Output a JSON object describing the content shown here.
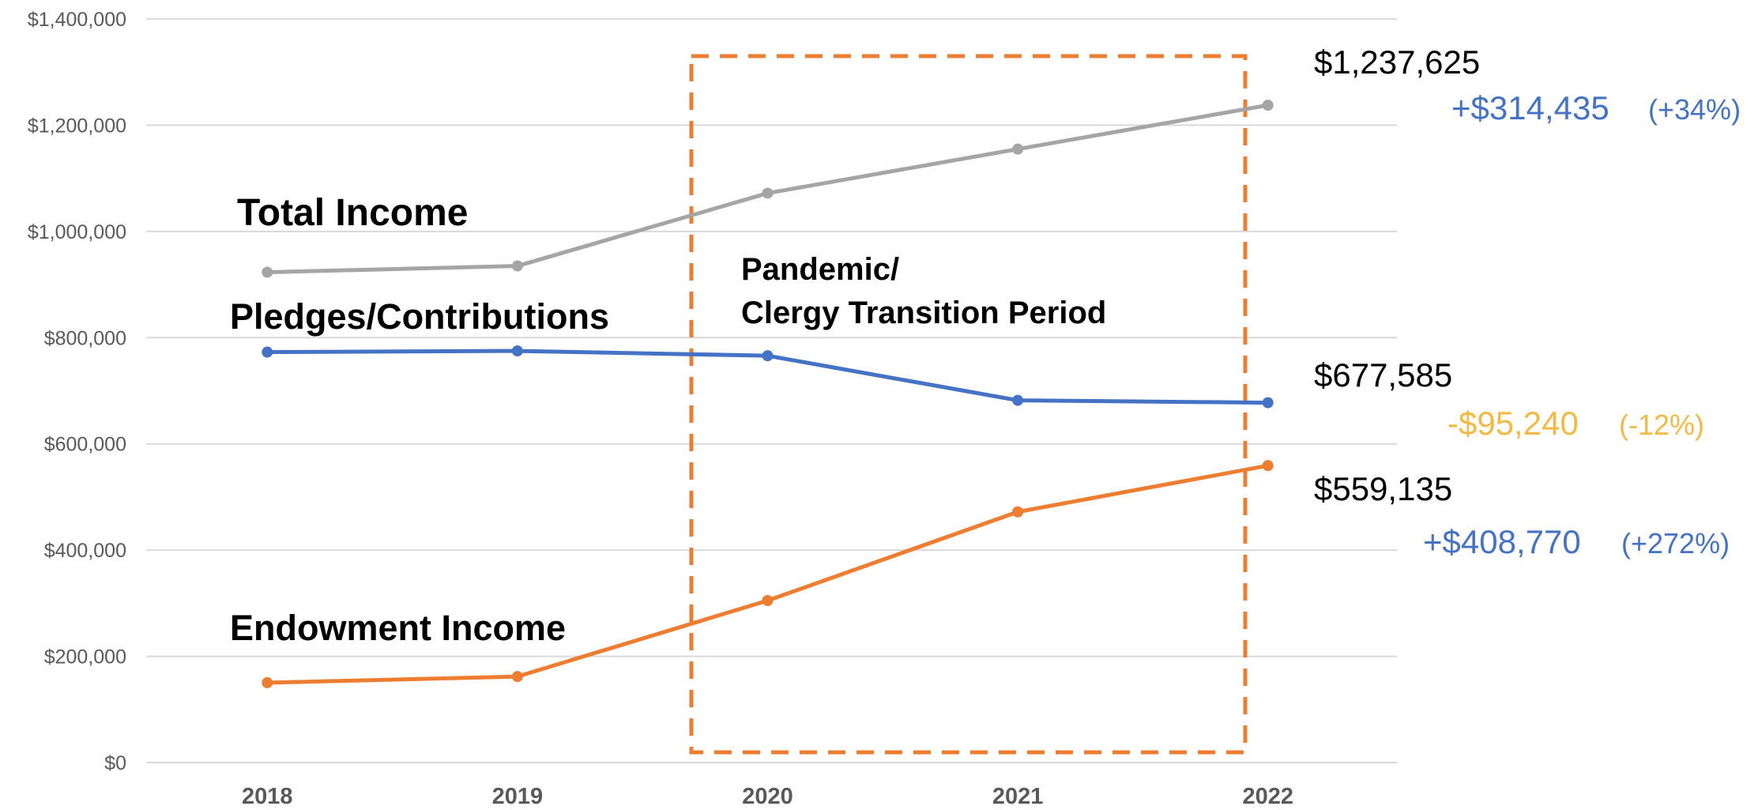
{
  "chart_data": {
    "type": "line",
    "categories": [
      "2018",
      "2019",
      "2020",
      "2021",
      "2022"
    ],
    "ylim": [
      0,
      1400000
    ],
    "yticks": [
      {
        "value": 0,
        "label": "$0"
      },
      {
        "value": 200000,
        "label": "$200,000"
      },
      {
        "value": 400000,
        "label": "$400,000"
      },
      {
        "value": 600000,
        "label": "$600,000"
      },
      {
        "value": 800000,
        "label": "$800,000"
      },
      {
        "value": 1000000,
        "label": "$1,000,000"
      },
      {
        "value": 1200000,
        "label": "$1,200,000"
      },
      {
        "value": 1400000,
        "label": "$1,400,000"
      }
    ],
    "grid": true,
    "series": [
      {
        "name": "Total Income",
        "color": "#a5a5a5",
        "values": [
          923190,
          935000,
          1072000,
          1155000,
          1237625
        ],
        "value_labels": [
          null,
          null,
          null,
          null,
          "$1,237,625"
        ],
        "change": "+$314,435",
        "change_pct": "(+34%)",
        "change_color": "#4472c4"
      },
      {
        "name": "Pledges/Contributions",
        "color": "#4472c4",
        "values": [
          772825,
          775000,
          766000,
          682000,
          677585
        ],
        "value_labels": [
          null,
          null,
          null,
          null,
          "$677,585"
        ],
        "change": "-$95,240",
        "change_pct": "(-12%)",
        "change_color": "#f4b942"
      },
      {
        "name": "Endowment Income",
        "color": "#ed7d31",
        "values": [
          150365,
          162000,
          305000,
          472000,
          559135
        ],
        "value_labels": [
          null,
          null,
          null,
          null,
          "$559,135"
        ],
        "change": "+$408,770",
        "change_pct": "(+272%)",
        "change_color": "#4472c4"
      }
    ],
    "annotations": [
      "Pandemic/",
      "Clergy Transition Period"
    ],
    "box_color": "#ed7d31"
  }
}
